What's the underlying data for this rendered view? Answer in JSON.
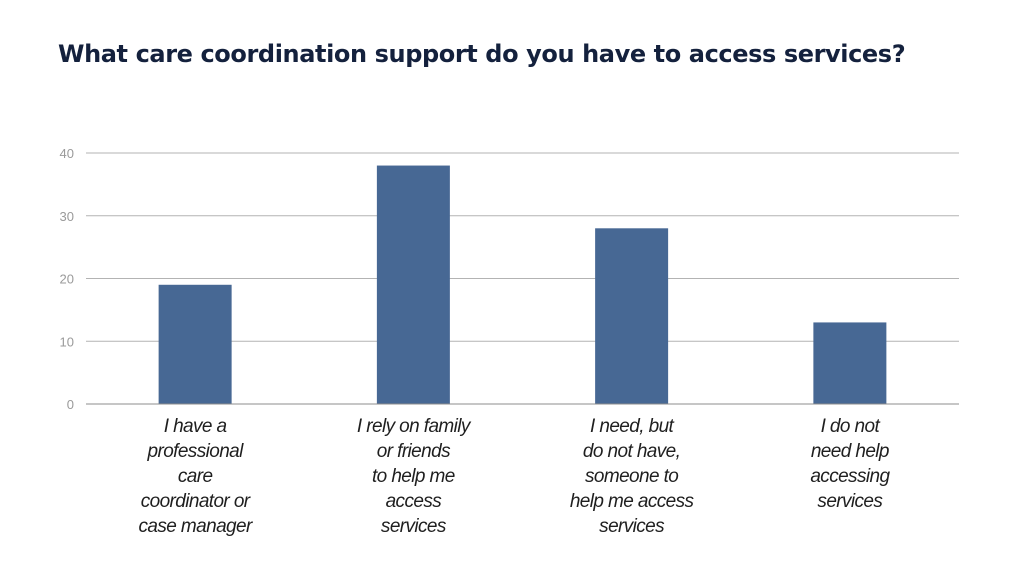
{
  "title": "What care coordination support do you have to access services?",
  "colors": {
    "bar": "#476894",
    "gridline": "#b3b3b3",
    "axis": "#8c8c8c",
    "title": "#14213d"
  },
  "chart_data": {
    "type": "bar",
    "title": "What care coordination support do you have to access services?",
    "xlabel": "",
    "ylabel": "",
    "ylim": [
      0,
      40
    ],
    "yticks": [
      0,
      10,
      20,
      30,
      40
    ],
    "grid": true,
    "legend": "none",
    "categories": [
      [
        "I have a",
        "professional",
        "care",
        "coordinator or",
        "case manager"
      ],
      [
        "I rely on family",
        "or friends",
        "to help me",
        "access",
        "services"
      ],
      [
        "I need, but",
        "do not have,",
        "someone to",
        "help me access",
        "services"
      ],
      [
        "I do not",
        "need help",
        "accessing",
        "services"
      ]
    ],
    "values": [
      19,
      38,
      28,
      13
    ]
  }
}
